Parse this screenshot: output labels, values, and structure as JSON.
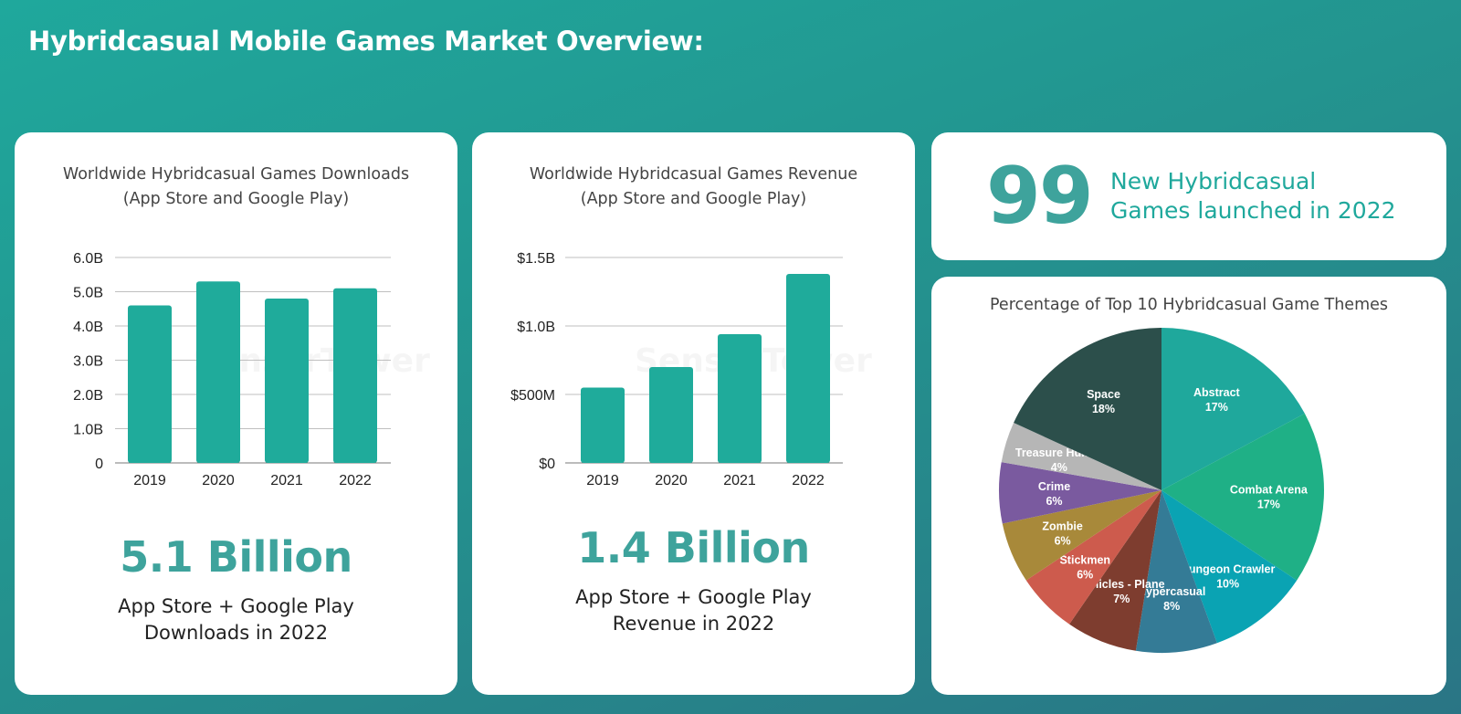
{
  "page": {
    "title": "Hybridcasual Mobile Games Market Overview:"
  },
  "downloads": {
    "title_line1": "Worldwide Hybridcasual Games Downloads",
    "title_line2": "(App Store and Google Play)",
    "stat": "5.1 Billion",
    "caption_line1": "App Store + Google Play",
    "caption_line2": "Downloads in 2022",
    "watermark": "SensorTower"
  },
  "revenue": {
    "title_line1": "Worldwide Hybridcasual Games Revenue",
    "title_line2": "(App Store and Google Play)",
    "stat": "1.4 Billion",
    "caption_line1": "App Store + Google Play",
    "caption_line2": "Revenue in 2022",
    "watermark": "SensorTower"
  },
  "launched": {
    "number": "99",
    "text_line1": "New Hybridcasual",
    "text_line2": "Games launched in 2022"
  },
  "themes": {
    "title": "Percentage of Top 10 Hybridcasual Game Themes"
  },
  "colors": {
    "accent": "#1fa89c",
    "stat": "#3ea39c",
    "bar": "#1fab9b"
  },
  "chart_data": [
    {
      "type": "bar",
      "title": "Worldwide Hybridcasual Games Downloads (App Store and Google Play)",
      "categories": [
        "2019",
        "2020",
        "2021",
        "2022"
      ],
      "values": [
        4.6,
        5.3,
        4.8,
        5.1
      ],
      "unit": "B",
      "ylim": [
        0,
        6
      ],
      "yticks": [
        0,
        1,
        2,
        3,
        4,
        5,
        6
      ],
      "ytick_labels": [
        "0",
        "1.0B",
        "2.0B",
        "3.0B",
        "4.0B",
        "5.0B",
        "6.0B"
      ],
      "grid": true
    },
    {
      "type": "bar",
      "title": "Worldwide Hybridcasual Games Revenue (App Store and Google Play)",
      "categories": [
        "2019",
        "2020",
        "2021",
        "2022"
      ],
      "values": [
        0.55,
        0.7,
        0.94,
        1.38
      ],
      "unit": "$B",
      "ylim": [
        0,
        1.5
      ],
      "yticks": [
        0,
        0.5,
        1.0,
        1.5
      ],
      "ytick_labels": [
        "$0",
        "$500M",
        "$1.0B",
        "$1.5B"
      ],
      "grid": true
    },
    {
      "type": "pie",
      "title": "Percentage of Top 10 Hybridcasual Game Themes",
      "slices": [
        {
          "label": "Abstract",
          "value": 17,
          "display": "17%",
          "color": "#1fa89c",
          "text_color": "#ffffff"
        },
        {
          "label": "Combat Arena",
          "value": 17,
          "display": "17%",
          "color": "#1fb086",
          "text_color": "#ffffff"
        },
        {
          "label": "Dungeon Crawler",
          "value": 10,
          "display": "10%",
          "color": "#0aa3b3",
          "text_color": "#ffffff"
        },
        {
          "label": "Hypercasual",
          "value": 8,
          "display": "8%",
          "color": "#347b96",
          "text_color": "#ffffff"
        },
        {
          "label": "Vehicles - Plane",
          "value": 7,
          "display": "7%",
          "color": "#7e3d2f",
          "text_color": "#ffffff"
        },
        {
          "label": "Stickmen",
          "value": 6,
          "display": "6%",
          "color": "#cd5b4d",
          "text_color": "#ffffff"
        },
        {
          "label": "Zombie",
          "value": 6,
          "display": "6%",
          "color": "#a8893a",
          "text_color": "#ffffff"
        },
        {
          "label": "Crime",
          "value": 6,
          "display": "6%",
          "color": "#7a5a9f",
          "text_color": "#ffffff"
        },
        {
          "label": "Treasure Hunter",
          "value": 4,
          "display": "4%",
          "color": "#b6b6b6",
          "text_color": "#ffffff"
        },
        {
          "label": "Space",
          "value": 18,
          "display": "18%",
          "color": "#2c4f4b",
          "text_color": "#ffffff"
        }
      ]
    }
  ]
}
